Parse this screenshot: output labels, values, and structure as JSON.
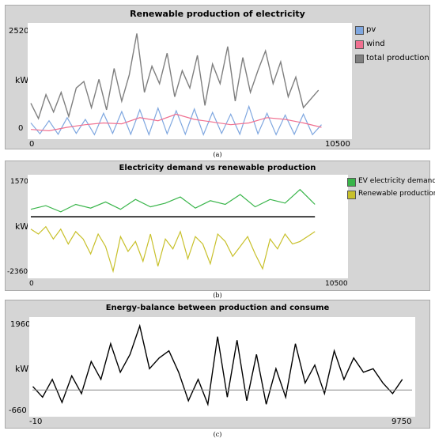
{
  "chart_data": [
    {
      "type": "line",
      "title": "Renewable production of electricity",
      "ylabel": "kW",
      "xlabel": "",
      "xlim": [
        0,
        10500
      ],
      "ylim": [
        0,
        2520
      ],
      "x_ticks": [
        "0",
        "10500"
      ],
      "y_ticks": [
        "2520",
        "0"
      ],
      "legend_position": "right",
      "series": [
        {
          "name": "pv",
          "color": "#7fa7e0",
          "x": [
            0,
            300,
            600,
            900,
            1200,
            1500,
            1800,
            2100,
            2400,
            2700,
            3000,
            3300,
            3600,
            3900,
            4200,
            4500,
            4800,
            5100,
            5400,
            5700,
            6000,
            6300,
            6600,
            6900,
            7200,
            7500,
            7800,
            8100,
            8400,
            8700,
            9000,
            9300,
            9600
          ],
          "y": [
            300,
            50,
            350,
            40,
            420,
            60,
            380,
            30,
            520,
            60,
            560,
            40,
            600,
            30,
            640,
            50,
            580,
            40,
            620,
            30,
            540,
            60,
            500,
            40,
            680,
            50,
            520,
            30,
            480,
            40,
            500,
            30,
            260
          ]
        },
        {
          "name": "wind",
          "color": "#f07090",
          "x": [
            0,
            600,
            1200,
            1800,
            2400,
            3000,
            3600,
            4200,
            4800,
            5400,
            6000,
            6600,
            7200,
            7800,
            8400,
            9000,
            9600
          ],
          "y": [
            150,
            120,
            200,
            260,
            300,
            280,
            420,
            350,
            500,
            380,
            320,
            260,
            300,
            420,
            380,
            300,
            200
          ]
        },
        {
          "name": "total production",
          "color": "#7f7f7f",
          "x": [
            0,
            250,
            500,
            750,
            1000,
            1250,
            1500,
            1750,
            2000,
            2250,
            2500,
            2750,
            3000,
            3250,
            3500,
            3750,
            4000,
            4250,
            4500,
            4750,
            5000,
            5250,
            5500,
            5750,
            6000,
            6250,
            6500,
            6750,
            7000,
            7250,
            7500,
            7750,
            8000,
            8250,
            8500,
            8750,
            9000,
            9250,
            9500
          ],
          "y": [
            750,
            400,
            950,
            550,
            1000,
            450,
            1100,
            1250,
            650,
            1300,
            600,
            1550,
            800,
            1400,
            2350,
            1000,
            1600,
            1200,
            1900,
            900,
            1500,
            1100,
            1850,
            700,
            1650,
            1200,
            2050,
            800,
            1800,
            1000,
            1500,
            1950,
            1200,
            1700,
            900,
            1350,
            650,
            850,
            1050
          ]
        }
      ]
    },
    {
      "type": "line",
      "title": "Electricity demand vs renewable production",
      "ylabel": "kW",
      "xlabel": "",
      "xlim": [
        0,
        10500
      ],
      "ylim": [
        -2360,
        1570
      ],
      "x_ticks": [
        "0",
        "10500"
      ],
      "y_ticks": [
        "1570",
        "-2360"
      ],
      "legend_position": "right",
      "series": [
        {
          "name": "EV electricity demand",
          "color": "#39b54a",
          "x": [
            0,
            500,
            1000,
            1500,
            2000,
            2500,
            3000,
            3500,
            4000,
            4500,
            5000,
            5500,
            6000,
            6500,
            7000,
            7500,
            8000,
            8500,
            9000,
            9500
          ],
          "y": [
            300,
            450,
            200,
            500,
            350,
            600,
            300,
            700,
            400,
            550,
            800,
            350,
            650,
            500,
            900,
            400,
            700,
            550,
            1100,
            500
          ]
        },
        {
          "name": "Renewable production",
          "color": "#c8c02a",
          "x": [
            0,
            250,
            500,
            750,
            1000,
            1250,
            1500,
            1750,
            2000,
            2250,
            2500,
            2750,
            3000,
            3250,
            3500,
            3750,
            4000,
            4250,
            4500,
            4750,
            5000,
            5250,
            5500,
            5750,
            6000,
            6250,
            6500,
            6750,
            7000,
            7250,
            7500,
            7750,
            8000,
            8250,
            8500,
            8750,
            9000,
            9250,
            9500
          ],
          "y": [
            -500,
            -700,
            -400,
            -900,
            -500,
            -1100,
            -600,
            -900,
            -1500,
            -700,
            -1200,
            -2200,
            -800,
            -1400,
            -1000,
            -1800,
            -700,
            -2000,
            -900,
            -1300,
            -600,
            -1700,
            -800,
            -1100,
            -1900,
            -700,
            -1000,
            -1600,
            -1200,
            -800,
            -1500,
            -2100,
            -900,
            -1300,
            -700,
            -1100,
            -1000,
            -800,
            -600
          ]
        }
      ]
    },
    {
      "type": "line",
      "title": "Energy-balance between production and consume",
      "ylabel": "kW",
      "xlabel": "",
      "xlim": [
        -10,
        9750
      ],
      "ylim": [
        -660,
        1960
      ],
      "x_ticks": [
        "-10",
        "9750"
      ],
      "y_ticks": [
        "1960",
        "-660"
      ],
      "series": [
        {
          "name": "",
          "color": "#000000",
          "x": [
            0,
            250,
            500,
            750,
            1000,
            1250,
            1500,
            1750,
            2000,
            2250,
            2500,
            2750,
            3000,
            3250,
            3500,
            3750,
            4000,
            4250,
            4500,
            4750,
            5000,
            5250,
            5500,
            5750,
            6000,
            6250,
            6500,
            6750,
            7000,
            7250,
            7500,
            7750,
            8000,
            8250,
            8500,
            8750,
            9000,
            9250,
            9500
          ],
          "y": [
            100,
            -200,
            300,
            -350,
            400,
            -100,
            800,
            300,
            1300,
            500,
            1000,
            1800,
            600,
            900,
            1100,
            500,
            -300,
            300,
            -400,
            1500,
            -200,
            1400,
            -300,
            1000,
            -400,
            600,
            -200,
            1300,
            200,
            700,
            -100,
            1100,
            300,
            900,
            500,
            600,
            200,
            -100,
            300
          ]
        },
        {
          "name": "",
          "color": "#888888",
          "x": [
            -10,
            9750
          ],
          "y": [
            0,
            0
          ]
        }
      ]
    }
  ],
  "captions": [
    "(a)",
    "(b)",
    "(c)"
  ]
}
